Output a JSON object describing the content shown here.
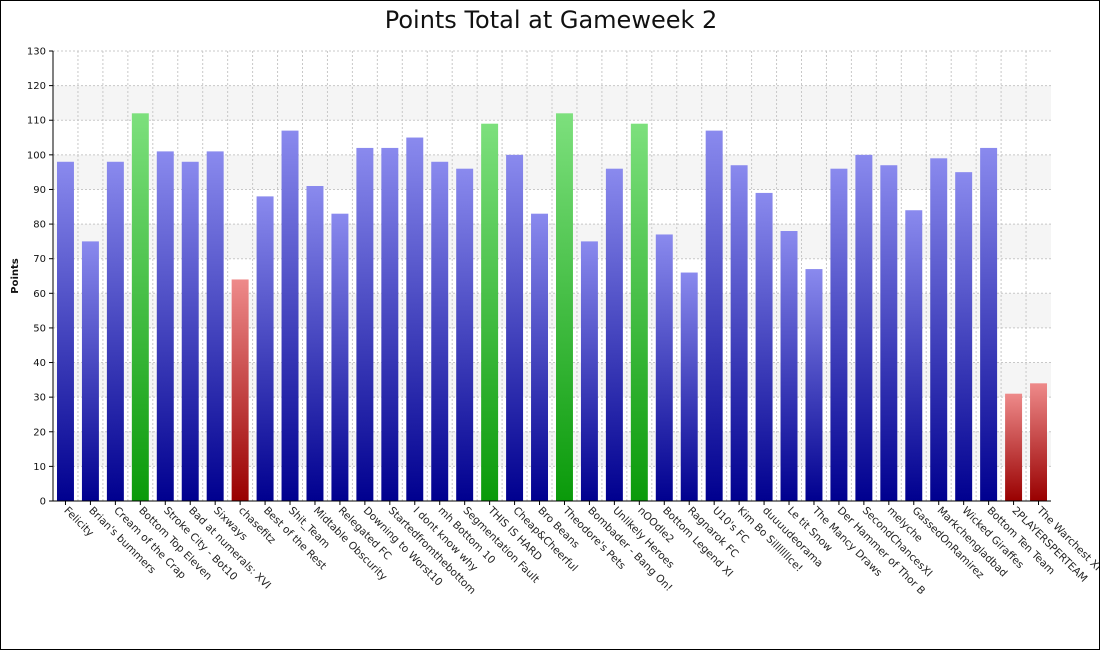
{
  "chart_data": {
    "type": "bar",
    "title": "Points Total at Gameweek 2",
    "xlabel": "",
    "ylabel": "Points",
    "ylim": [
      0,
      130
    ],
    "yticks": [
      0,
      10,
      20,
      30,
      40,
      50,
      60,
      70,
      80,
      90,
      100,
      110,
      120,
      130
    ],
    "grid": true,
    "legend": "none",
    "categories": [
      "Felicity",
      "Brian's bummers",
      "Cream of the Crap",
      "Bottom Top Eleven",
      "Stroke City - Bot10",
      "Bad at numerals: XVI",
      "Sixways",
      "chasefitz",
      "Best of the Rest",
      "Shit_Team",
      "Midtable Obscurity",
      "Relegated FC",
      "Downing to Worst10",
      "Startedfromthebottom",
      "I dont know why",
      "mh Bottom 10",
      "Segmentation Fault",
      "THIS IS HARD",
      "Cheap&Cheerful",
      "Bro Beans",
      "Theodore's Pets",
      "Bombader - Bang On!",
      "Unlikely Heroes",
      "nOOdle2",
      "Bottom Legend XI",
      "Ragnarok FC",
      "U10's FC",
      "Kim Bo Silllllllce!",
      "duuuudeorama",
      "Le tit Snow",
      "The Mancy Draws",
      "Der Hammer of Thor B",
      "SecondChancesXI",
      "melyche",
      "GassedOnRamirez",
      "Markchengladbad",
      "Wicked Giraffes",
      "Bottom Ten Team",
      "2PLAYERSPERTEAM",
      "The Warchest XI"
    ],
    "values": [
      98,
      75,
      98,
      112,
      101,
      98,
      101,
      64,
      88,
      107,
      91,
      83,
      102,
      102,
      105,
      98,
      96,
      109,
      100,
      83,
      112,
      75,
      96,
      109,
      77,
      66,
      107,
      97,
      89,
      78,
      67,
      96,
      100,
      97,
      84,
      99,
      95,
      102,
      31,
      34
    ],
    "bar_status": [
      "normal",
      "normal",
      "normal",
      "high",
      "normal",
      "normal",
      "normal",
      "low",
      "normal",
      "normal",
      "normal",
      "normal",
      "normal",
      "normal",
      "normal",
      "normal",
      "normal",
      "high",
      "normal",
      "normal",
      "high",
      "normal",
      "normal",
      "high",
      "normal",
      "normal",
      "normal",
      "normal",
      "normal",
      "normal",
      "normal",
      "normal",
      "normal",
      "normal",
      "normal",
      "normal",
      "normal",
      "normal",
      "low",
      "low"
    ],
    "colors": {
      "normal_top": "#8a8aee",
      "normal_bottom": "#00008f",
      "high_top": "#7de07d",
      "high_bottom": "#0a9a0a",
      "low_top": "#ee8a8a",
      "low_bottom": "#990000",
      "grid": "#c8c8c8",
      "band": "#f5f5f5"
    }
  }
}
